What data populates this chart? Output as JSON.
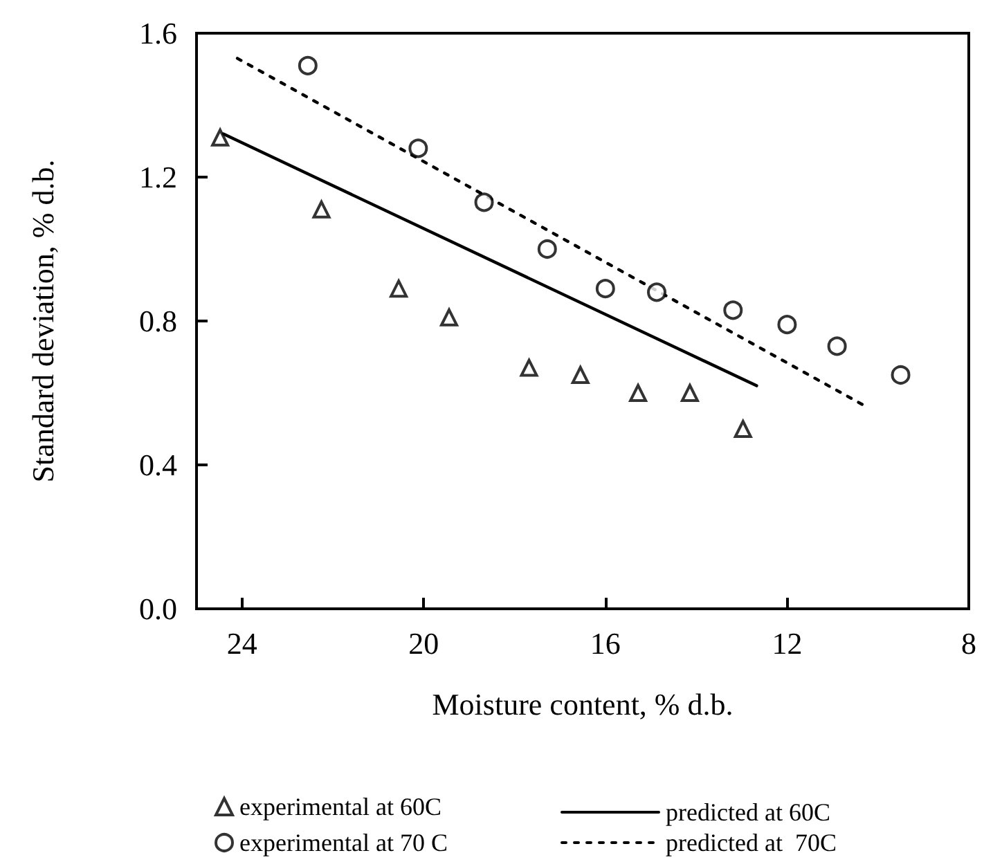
{
  "chart_data": {
    "type": "scatter",
    "xlabel": "Moisture content, % d.b.",
    "ylabel": "Standard deviation, % d.b.",
    "xlim": [
      25,
      8
    ],
    "xticks": [
      24,
      20,
      16,
      12,
      8
    ],
    "ylim": [
      0,
      1.6
    ],
    "yticks": [
      {
        "value": 0,
        "label": "0.0"
      },
      0.4,
      0.8,
      1.2,
      1.6
    ],
    "grid": false,
    "legend": "bottom",
    "series": [
      {
        "name": "experimental at 60C",
        "marker": "triangle",
        "color": "#000000",
        "x": [
          24.48,
          22.25,
          20.55,
          19.44,
          17.68,
          16.55,
          15.28,
          14.14,
          12.97
        ],
        "values": [
          1.31,
          1.11,
          0.89,
          0.81,
          0.67,
          0.65,
          0.6,
          0.6,
          0.5
        ]
      },
      {
        "name": "predicted at 60C",
        "type": "line",
        "marker": "none",
        "line_style": "solid",
        "color": "#000000",
        "x": [
          24.41,
          12.67
        ],
        "values": [
          1.32,
          0.62
        ]
      },
      {
        "name": "experimental at 70 C",
        "marker": "circle",
        "color": "#000000",
        "x": [
          22.55,
          20.12,
          18.67,
          17.28,
          16.0,
          14.87,
          13.19,
          12.0,
          10.9,
          9.5
        ],
        "values": [
          1.51,
          1.28,
          1.13,
          1.0,
          0.89,
          0.88,
          0.83,
          0.79,
          0.73,
          0.65
        ]
      },
      {
        "name": "predicted at  70C",
        "type": "line",
        "marker": "none",
        "line_style": "dotted",
        "color": "#000000",
        "x": [
          24.1,
          10.23
        ],
        "values": [
          1.53,
          0.56
        ]
      }
    ]
  }
}
